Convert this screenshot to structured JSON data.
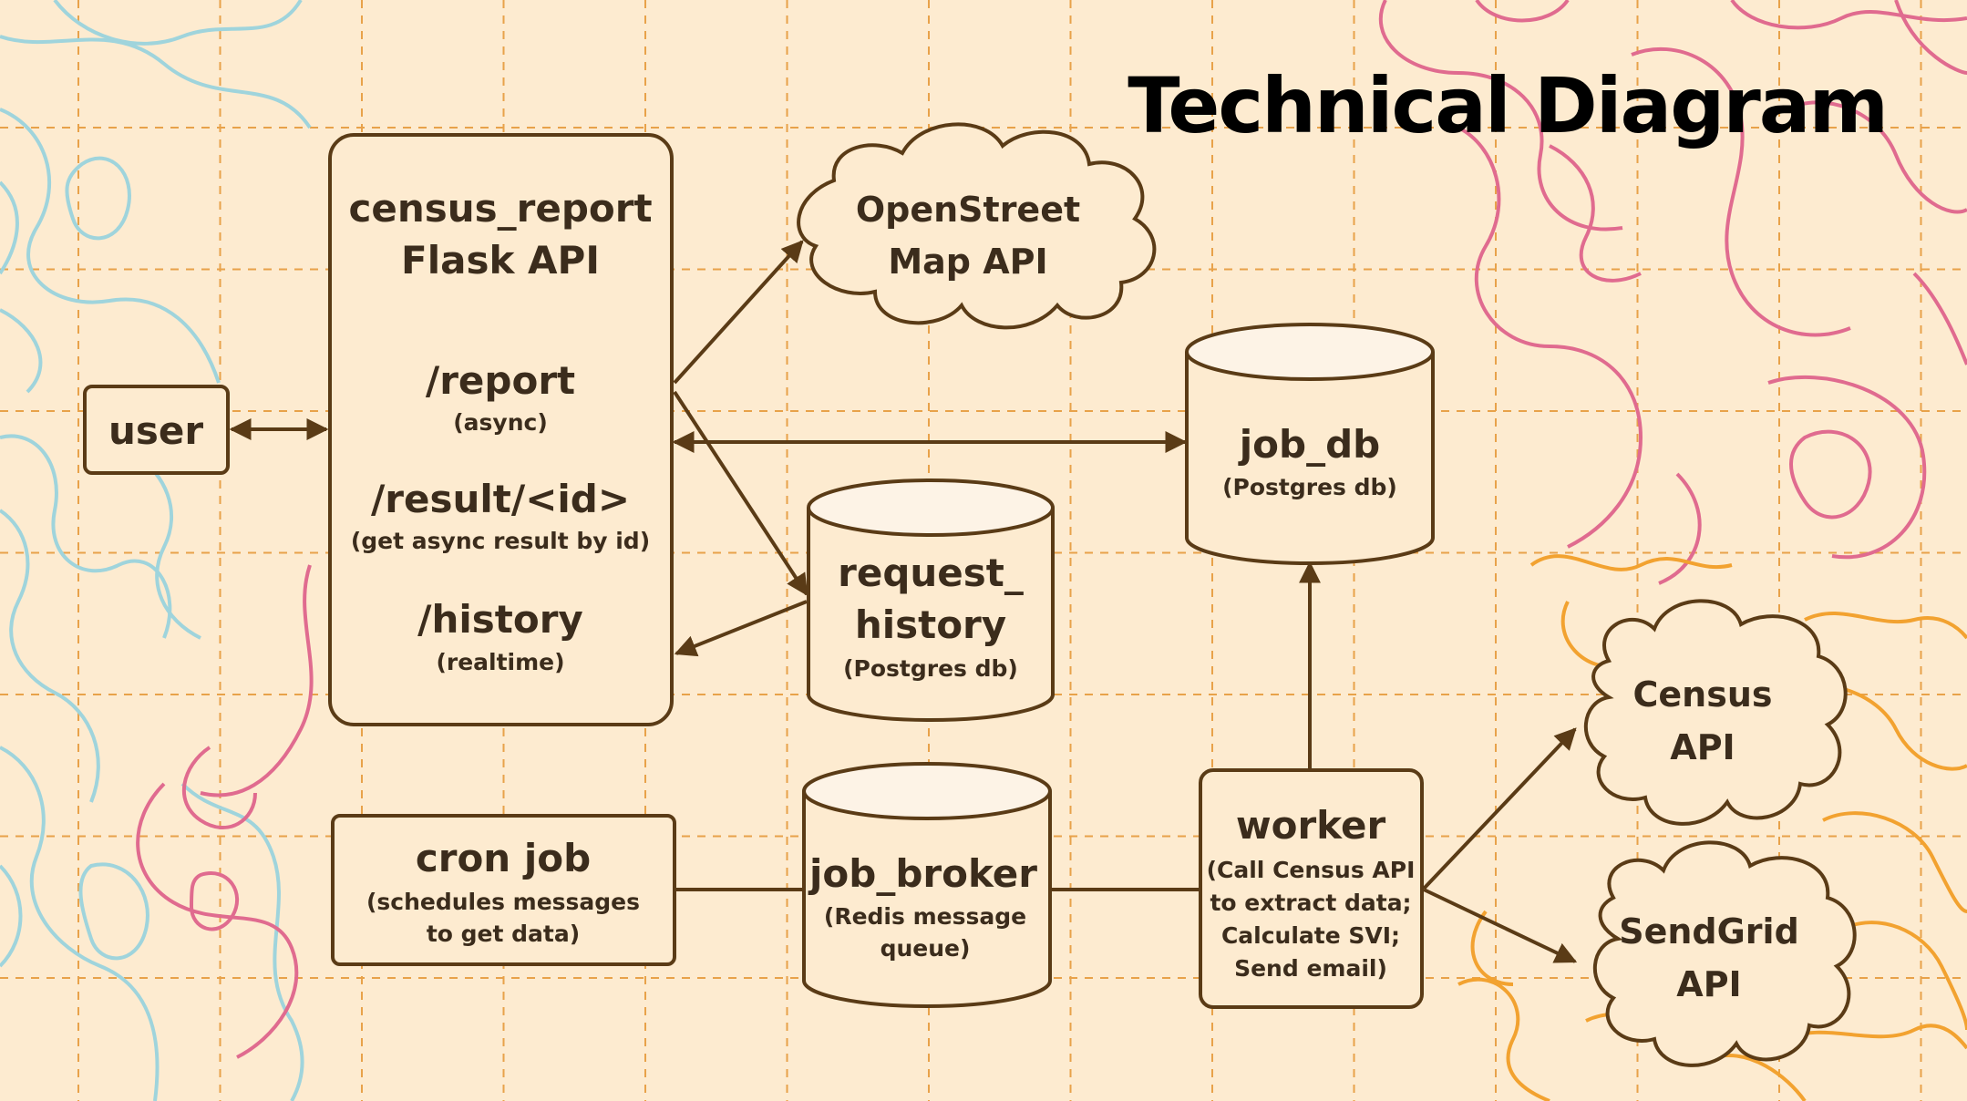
{
  "title": "Technical Diagram",
  "nodes": {
    "user": {
      "label": "user"
    },
    "flask_api": {
      "title_line1": "census_report",
      "title_line2": "Flask API",
      "endpoints": [
        {
          "path": "/report",
          "note": "(async)"
        },
        {
          "path": "/result/<id>",
          "note": "(get async result by id)"
        },
        {
          "path": "/history",
          "note": "(realtime)"
        }
      ]
    },
    "osm_api": {
      "line1": "OpenStreet",
      "line2": "Map API"
    },
    "job_db": {
      "name": "job_db",
      "note": "(Postgres db)"
    },
    "request_history": {
      "line1": "request_",
      "line2": "history",
      "note": "(Postgres db)"
    },
    "cron_job": {
      "name": "cron job",
      "note1": "(schedules messages",
      "note2": "to get data)"
    },
    "job_broker": {
      "name": "job_broker",
      "note1": "(Redis message",
      "note2": "queue)"
    },
    "worker": {
      "name": "worker",
      "note1": "(Call Census API",
      "note2": "to extract data;",
      "note3": "Calculate SVI;",
      "note4": "Send email)"
    },
    "census_api": {
      "line1": "Census",
      "line2": "API"
    },
    "sendgrid_api": {
      "line1": "SendGrid",
      "line2": "API"
    }
  },
  "colors": {
    "background": "#fdebd0",
    "grid": "#e8a24a",
    "outline": "#5a3b16",
    "text": "#3b2c1c",
    "topo_blue": "#9fd4dc",
    "topo_pink": "#e06b8f",
    "topo_orange": "#f2a230"
  }
}
